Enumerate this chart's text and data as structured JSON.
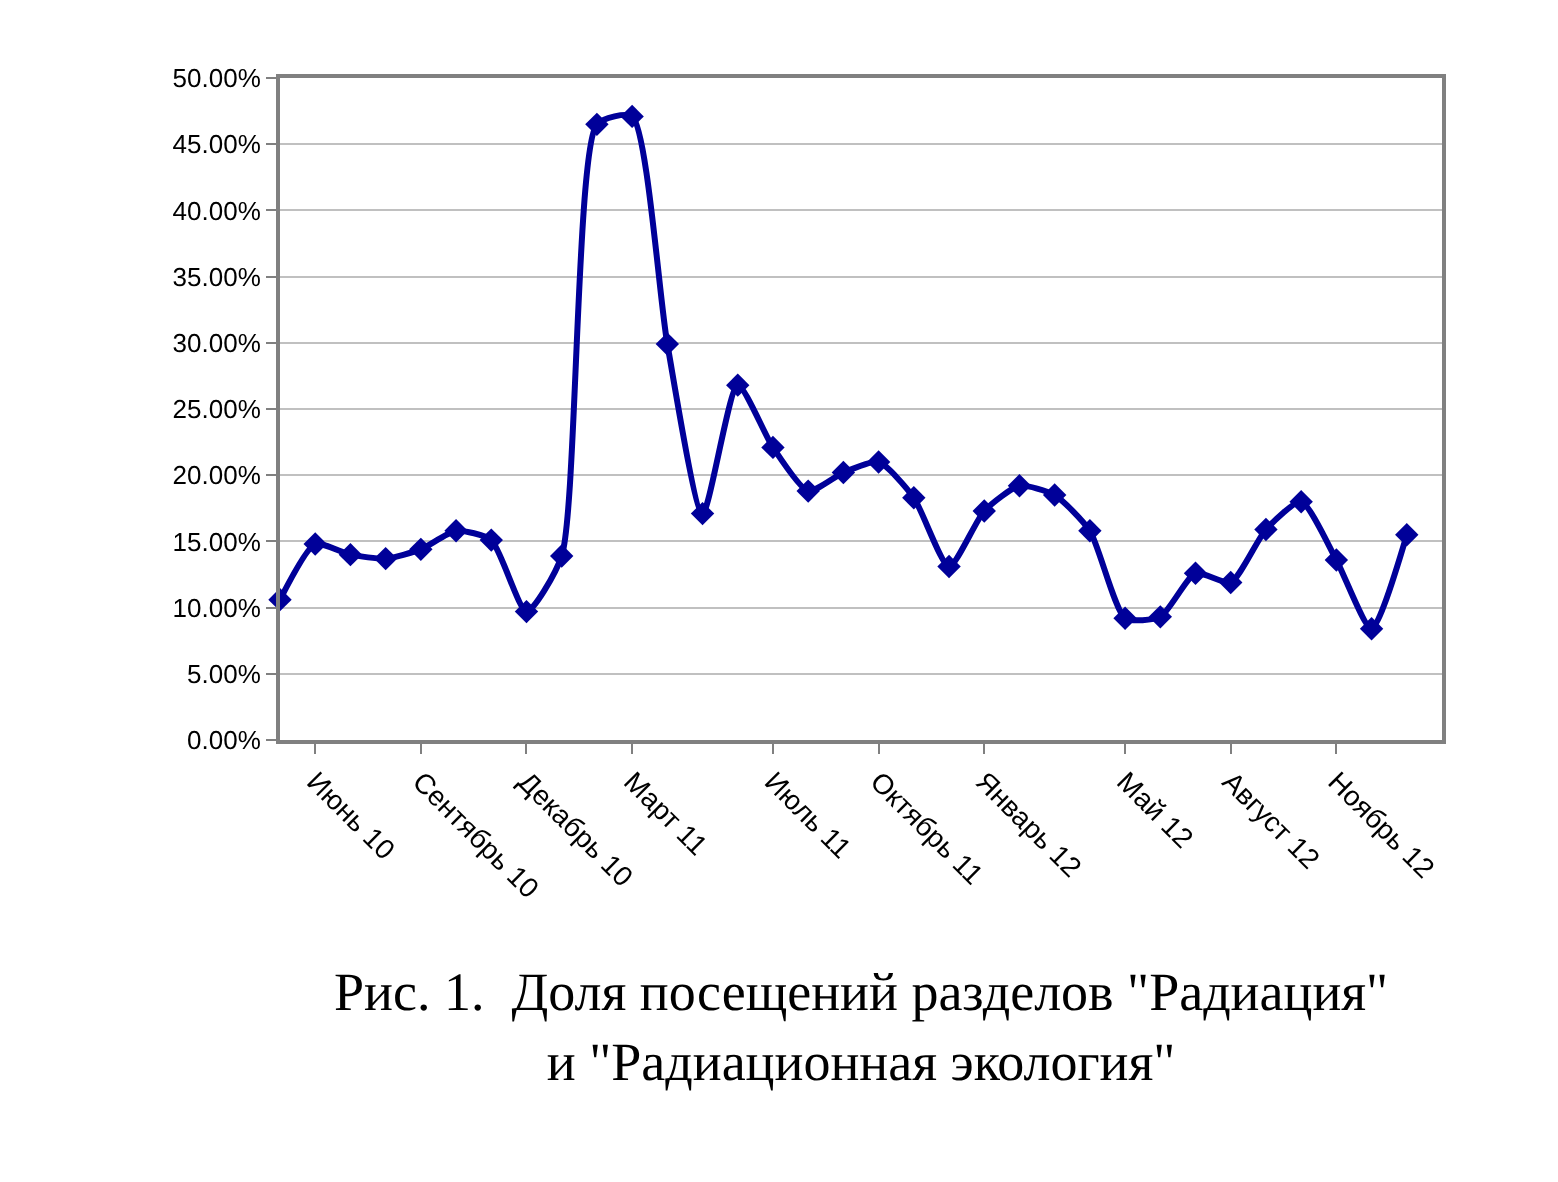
{
  "chart_data": {
    "type": "line",
    "title": "Рис. 1.  Доля посещений разделов \"Радиация\"\nи \"Радиационная экология\"",
    "categories": [
      null,
      "Июнь 10",
      null,
      null,
      "Сентябрь 10",
      null,
      null,
      "Декабрь 10",
      null,
      null,
      "Март 11",
      null,
      null,
      null,
      "Июль 11",
      null,
      null,
      "Октябрь 11",
      null,
      null,
      "Январь 12",
      null,
      null,
      null,
      "Май 12",
      null,
      null,
      "Август 12",
      null,
      null,
      "Ноябрь 12",
      null,
      null
    ],
    "series": [
      {
        "color": "#000099",
        "values": [
          10.6,
          14.8,
          14.0,
          13.7,
          14.4,
          15.8,
          15.1,
          9.7,
          13.9,
          46.5,
          47.1,
          29.9,
          17.1,
          26.8,
          22.1,
          18.8,
          20.2,
          21.0,
          18.3,
          13.1,
          17.3,
          19.2,
          18.5,
          15.8,
          9.2,
          9.3,
          12.6,
          11.9,
          15.9,
          18.0,
          13.6,
          8.4,
          15.5
        ]
      }
    ],
    "ylim": [
      0,
      50
    ],
    "yticks": [
      {
        "value": 0,
        "label": "0.00%"
      },
      {
        "value": 5,
        "label": "5.00%"
      },
      {
        "value": 10,
        "label": "10.00%"
      },
      {
        "value": 15,
        "label": "15.00%"
      },
      {
        "value": 20,
        "label": "20.00%"
      },
      {
        "value": 25,
        "label": "25.00%"
      },
      {
        "value": 30,
        "label": "30.00%"
      },
      {
        "value": 35,
        "label": "35.00%"
      },
      {
        "value": 40,
        "label": "40.00%"
      },
      {
        "value": 45,
        "label": "45.00%"
      },
      {
        "value": 50,
        "label": "50.00%"
      }
    ],
    "grid": "y",
    "legend": false,
    "marker": "diamond",
    "line_style": "solid"
  }
}
